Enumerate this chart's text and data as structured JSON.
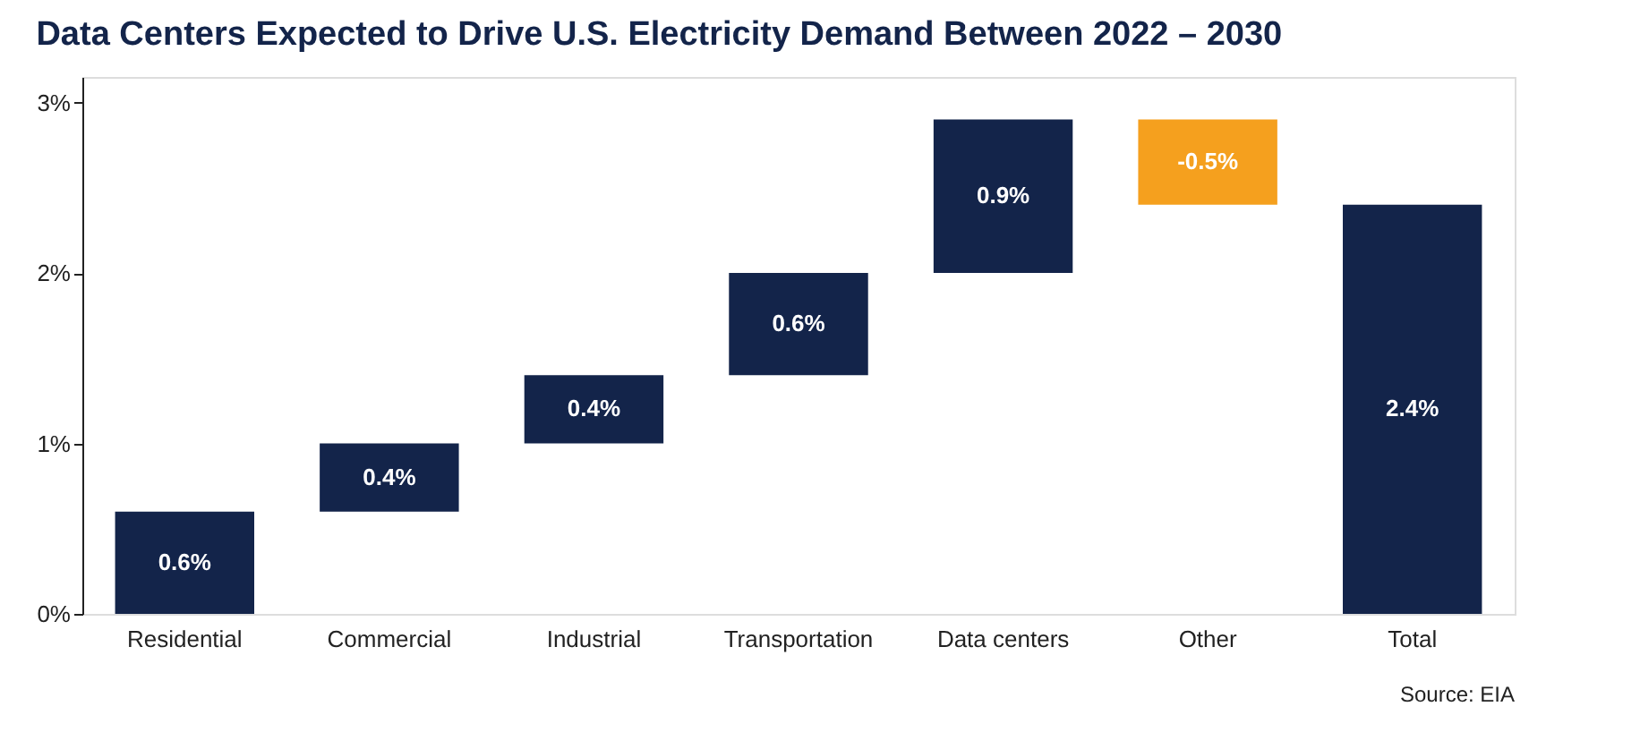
{
  "chart_data": {
    "type": "bar",
    "title": "Data Centers Expected to Drive U.S. Electricity Demand Between 2022 – 2030",
    "categories": [
      "Residential",
      "Commercial",
      "Industrial",
      "Transportation",
      "Data centers",
      "Other",
      "Total"
    ],
    "values": [
      0.6,
      0.4,
      0.4,
      0.6,
      0.9,
      -0.5,
      2.4
    ],
    "base": [
      0,
      0.6,
      1.0,
      1.4,
      2.0,
      2.9,
      0
    ],
    "colors": [
      "#13244a",
      "#13244a",
      "#13244a",
      "#13244a",
      "#13244a",
      "#f5a01e",
      "#13244a"
    ],
    "value_labels": [
      "0.6%",
      "0.4%",
      "0.4%",
      "0.6%",
      "0.9%",
      "-0.5%",
      "2.4%"
    ],
    "ylim": [
      0,
      3.15
    ],
    "yticks": [
      {
        "value": 0,
        "label": "0%"
      },
      {
        "value": 1,
        "label": "1%"
      },
      {
        "value": 2,
        "label": "2%"
      },
      {
        "value": 3,
        "label": "3%"
      }
    ],
    "grid": false,
    "annotations": [
      "Source: EIA"
    ]
  }
}
